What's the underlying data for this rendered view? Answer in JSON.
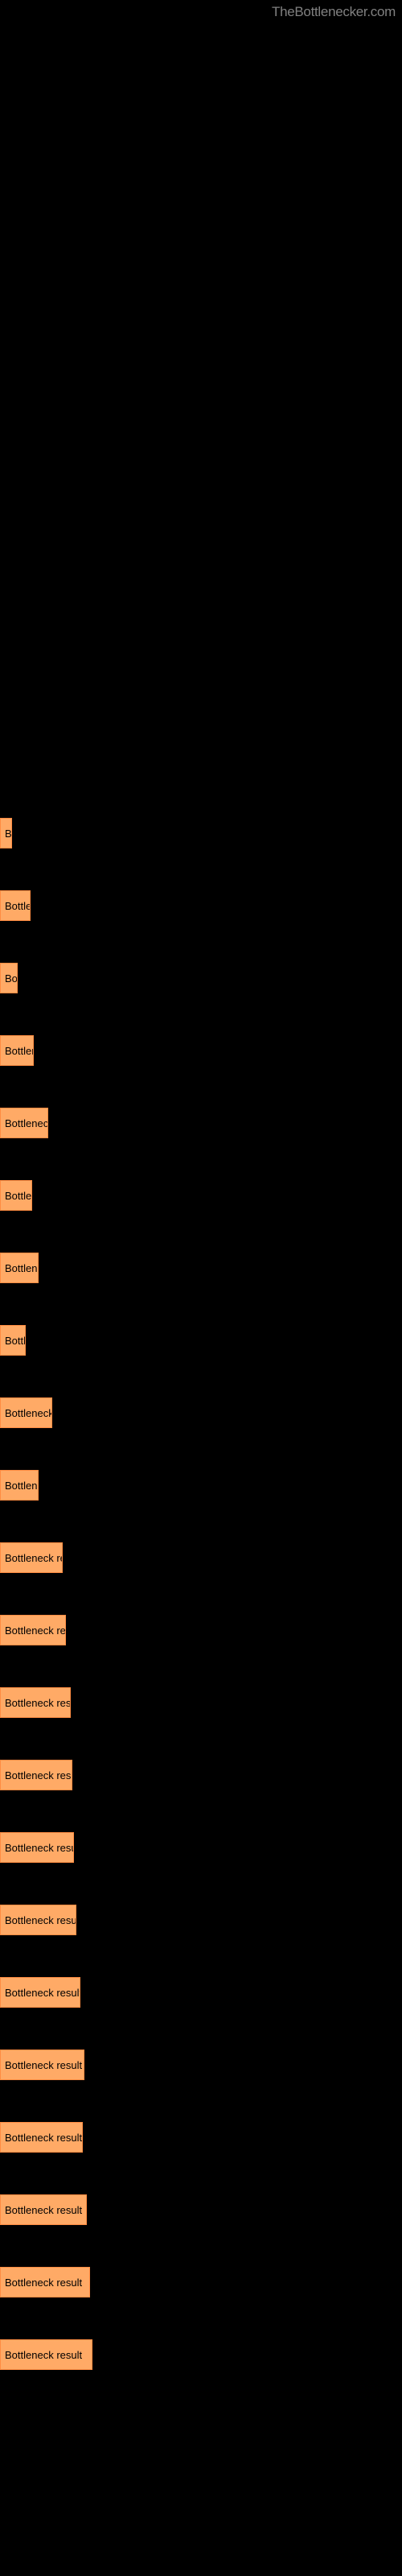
{
  "watermark": "TheBottlenecker.com",
  "chart": {
    "type": "bar",
    "bar_color": "#ffaa66",
    "bar_border_color": "#ff8c42",
    "text_color": "#000000",
    "background_color": "#000000",
    "label_text": "Bottleneck result",
    "bars": [
      {
        "width": 15,
        "label": "B"
      },
      {
        "width": 38,
        "label": "Bottlen"
      },
      {
        "width": 22,
        "label": "Bot"
      },
      {
        "width": 42,
        "label": "Bottlene"
      },
      {
        "width": 60,
        "label": "Bottleneck r"
      },
      {
        "width": 40,
        "label": "Bottlen"
      },
      {
        "width": 48,
        "label": "Bottleneck"
      },
      {
        "width": 32,
        "label": "Bottle"
      },
      {
        "width": 65,
        "label": "Bottleneck re"
      },
      {
        "width": 48,
        "label": "Bottlenec"
      },
      {
        "width": 78,
        "label": "Bottleneck resul"
      },
      {
        "width": 82,
        "label": "Bottleneck result"
      },
      {
        "width": 88,
        "label": "Bottleneck result"
      },
      {
        "width": 90,
        "label": "Bottleneck result"
      },
      {
        "width": 92,
        "label": "Bottleneck resul"
      },
      {
        "width": 95,
        "label": "Bottleneck result"
      },
      {
        "width": 100,
        "label": "Bottleneck result"
      },
      {
        "width": 105,
        "label": "Bottleneck result"
      },
      {
        "width": 103,
        "label": "Bottleneck result"
      },
      {
        "width": 108,
        "label": "Bottleneck result"
      },
      {
        "width": 112,
        "label": "Bottleneck result"
      },
      {
        "width": 115,
        "label": "Bottleneck result"
      }
    ]
  }
}
